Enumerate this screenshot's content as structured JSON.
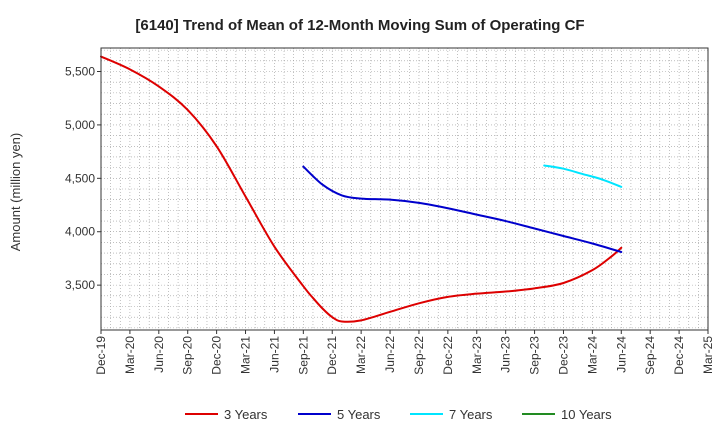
{
  "chart_data": {
    "type": "line",
    "title": "[6140]  Trend of Mean of 12-Month Moving Sum of Operating CF",
    "xlabel": "",
    "ylabel": "Amount (million yen)",
    "ylim": [
      3080,
      5720
    ],
    "y_ticks": [
      3500,
      4000,
      4500,
      5000,
      5500
    ],
    "y_tick_labels": [
      "3,500",
      "4,000",
      "4,500",
      "5,000",
      "5,500"
    ],
    "x_tick_labels": [
      "Dec-19",
      "Mar-20",
      "Jun-20",
      "Sep-20",
      "Dec-20",
      "Mar-21",
      "Jun-21",
      "Sep-21",
      "Dec-21",
      "Mar-22",
      "Jun-22",
      "Sep-22",
      "Dec-22",
      "Mar-23",
      "Jun-23",
      "Sep-23",
      "Dec-23",
      "Mar-24",
      "Jun-24",
      "Sep-24",
      "Dec-24",
      "Mar-25"
    ],
    "x_index_note": "x values are month offsets from Dec-19",
    "grid": true,
    "legend_position": "bottom",
    "series": [
      {
        "name": "3 Years",
        "color": "#dd0000",
        "x": [
          0,
          3,
          6,
          9,
          12,
          15,
          18,
          21,
          22,
          23,
          24,
          25,
          27,
          30,
          33,
          36,
          39,
          42,
          45,
          48,
          51,
          53,
          54
        ],
        "y": [
          5640,
          5520,
          5360,
          5140,
          4800,
          4330,
          3860,
          3490,
          3380,
          3280,
          3200,
          3160,
          3170,
          3250,
          3330,
          3390,
          3420,
          3440,
          3470,
          3520,
          3640,
          3770,
          3850
        ]
      },
      {
        "name": "5 Years",
        "color": "#0000cc",
        "x": [
          21,
          23,
          25,
          27,
          30,
          33,
          36,
          39,
          42,
          45,
          48,
          51,
          54
        ],
        "y": [
          4610,
          4440,
          4340,
          4310,
          4300,
          4270,
          4220,
          4160,
          4100,
          4030,
          3960,
          3890,
          3810
        ]
      },
      {
        "name": "7 Years",
        "color": "#00e5ff",
        "x": [
          46,
          48,
          50,
          52,
          54
        ],
        "y": [
          4620,
          4590,
          4540,
          4490,
          4420
        ]
      },
      {
        "name": "10 Years",
        "color": "#228b22",
        "x": [],
        "y": []
      }
    ]
  }
}
